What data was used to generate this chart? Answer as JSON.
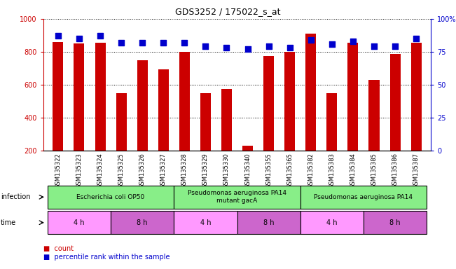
{
  "title": "GDS3252 / 175022_s_at",
  "samples": [
    "GSM135322",
    "GSM135323",
    "GSM135324",
    "GSM135325",
    "GSM135326",
    "GSM135327",
    "GSM135328",
    "GSM135329",
    "GSM135330",
    "GSM135340",
    "GSM135355",
    "GSM135365",
    "GSM135382",
    "GSM135383",
    "GSM135384",
    "GSM135385",
    "GSM135386",
    "GSM135387"
  ],
  "counts": [
    860,
    850,
    855,
    548,
    748,
    695,
    800,
    548,
    575,
    230,
    775,
    800,
    910,
    548,
    855,
    630,
    785,
    855
  ],
  "percentile_ranks": [
    87,
    85,
    87,
    82,
    82,
    82,
    82,
    79,
    78,
    77,
    79,
    78,
    84,
    81,
    83,
    79,
    79,
    85
  ],
  "ylim_left": [
    200,
    1000
  ],
  "ylim_right": [
    0,
    100
  ],
  "yticks_left": [
    200,
    400,
    600,
    800,
    1000
  ],
  "yticks_right": [
    0,
    25,
    50,
    75,
    100
  ],
  "bar_color": "#cc0000",
  "dot_color": "#0000cc",
  "infection_color": "#88ee88",
  "time_color_4h": "#ff99ff",
  "time_color_8h": "#cc66cc",
  "bar_width": 0.5,
  "dot_size": 30
}
